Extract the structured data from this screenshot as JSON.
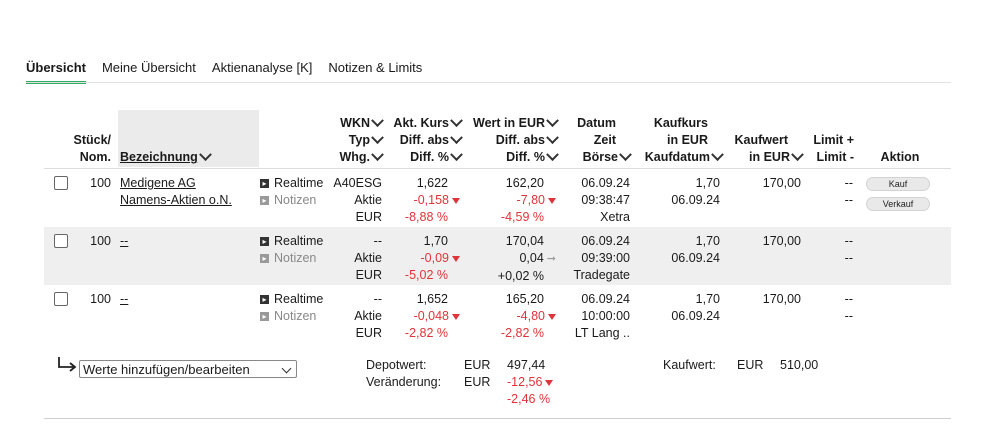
{
  "tabs": [
    "Übersicht",
    "Meine Übersicht",
    "Aktienanalyse [K]",
    "Notizen & Limits"
  ],
  "headers": {
    "stueck1": "Stück/",
    "stueck2": "Nom.",
    "bezeichnung": "Bezeichnung",
    "wkn": "WKN",
    "typ": "Typ",
    "whg": "Whg.",
    "akt_kurs": "Akt. Kurs",
    "diff_abs1": "Diff. abs",
    "diff_pct1": "Diff. %",
    "wert_eur": "Wert in EUR",
    "diff_abs2": "Diff. abs",
    "diff_pct2": "Diff. %",
    "datum": "Datum",
    "zeit": "Zeit",
    "boerse": "Börse",
    "kaufkurs1": "Kaufkurs",
    "kaufkurs2": "in EUR",
    "kaufdatum": "Kaufdatum",
    "kaufwert1": "Kaufwert",
    "kaufwert2": "in EUR",
    "limit1": "Limit +",
    "limit2": "Limit -",
    "aktion": "Aktion"
  },
  "rows": [
    {
      "qty": "100",
      "name1": "Medigene AG",
      "name2": "Namens-Aktien o.N.",
      "realtime": "Realtime",
      "notizen": "Notizen",
      "wkn": "A40ESG",
      "typ": "Aktie",
      "whg": "EUR",
      "kurs": "1,622",
      "kurs_diff": "-0,158",
      "kurs_pct": "-8,88 %",
      "wert": "162,20",
      "wert_diff": "-7,80",
      "wert_pct": "-4,59 %",
      "datum": "06.09.24",
      "zeit": "09:38:47",
      "boerse": "Xetra",
      "kaufkurs": "1,70",
      "kaufdatum": "06.09.24",
      "kaufwert": "170,00",
      "limit_plus": "--",
      "limit_minus": "--",
      "kauf": "Kauf",
      "verkauf": "Verkauf"
    },
    {
      "qty": "100",
      "name1": "--",
      "realtime": "Realtime",
      "notizen": "Notizen",
      "wkn": "--",
      "typ": "Aktie",
      "whg": "EUR",
      "kurs": "1,70",
      "kurs_diff": "-0,09",
      "kurs_pct": "-5,02 %",
      "wert": "170,04",
      "wert_diff": "0,04",
      "wert_pct": "+0,02 %",
      "datum": "06.09.24",
      "zeit": "09:39:00",
      "boerse": "Tradegate",
      "kaufkurs": "1,70",
      "kaufdatum": "06.09.24",
      "kaufwert": "170,00",
      "limit_plus": "--",
      "limit_minus": "--"
    },
    {
      "qty": "100",
      "name1": "--",
      "realtime": "Realtime",
      "notizen": "Notizen",
      "wkn": "--",
      "typ": "Aktie",
      "whg": "EUR",
      "kurs": "1,652",
      "kurs_diff": "-0,048",
      "kurs_pct": "-2,82 %",
      "wert": "165,20",
      "wert_diff": "-4,80",
      "wert_pct": "-2,82 %",
      "datum": "06.09.24",
      "zeit": "10:00:00",
      "boerse": "LT Lang ..",
      "kaufkurs": "1,70",
      "kaufdatum": "06.09.24",
      "kaufwert": "170,00",
      "limit_plus": "--",
      "limit_minus": "--"
    }
  ],
  "footer": {
    "select_label": "Werte hinzufügen/bearbeiten",
    "depotwert_label": "Depotwert:",
    "veraenderung_label": "Veränderung:",
    "cur1": "EUR",
    "cur2": "EUR",
    "depotwert": "497,44",
    "veraenderung_abs": "-12,56",
    "veraenderung_pct": "-2,46 %",
    "kaufwert_label": "Kaufwert:",
    "kaufwert_cur": "EUR",
    "kaufwert": "510,00"
  },
  "colors": {
    "accent": "#2fae5f",
    "negative": "#e0343a"
  }
}
